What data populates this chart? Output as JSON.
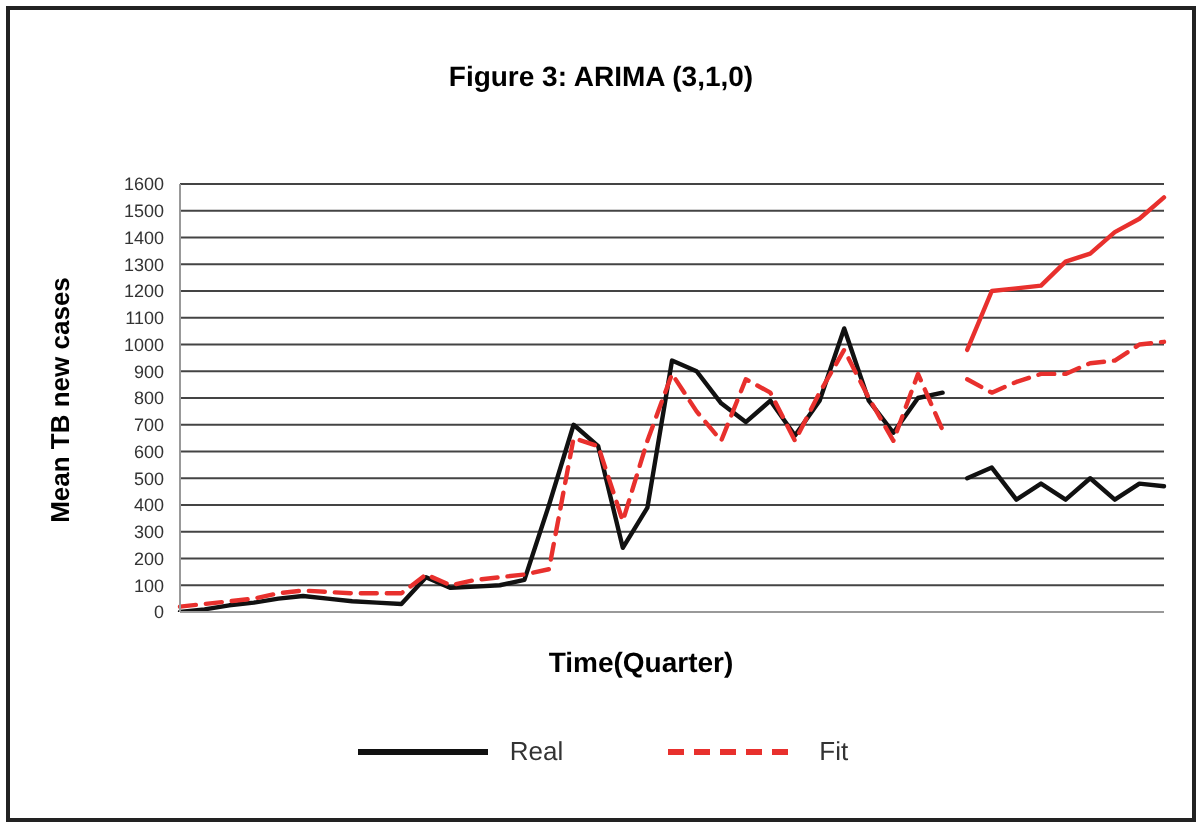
{
  "chart_data": {
    "type": "line",
    "title": "Figure 3: ARIMA (3,1,0)",
    "xlabel": "Time(Quarter)",
    "ylabel": "Mean TB new cases",
    "ylim": [
      0,
      1600
    ],
    "yticks": [
      0,
      100,
      200,
      300,
      400,
      500,
      600,
      700,
      800,
      900,
      1000,
      1100,
      1200,
      1300,
      1400,
      1500,
      1600
    ],
    "tick_labels": "y",
    "grid": "y",
    "legend": "bottom",
    "marker": "none",
    "categories": [
      null,
      null,
      null,
      null,
      null,
      null,
      null,
      null,
      null,
      null,
      null,
      null,
      null,
      null,
      null,
      null,
      null,
      null,
      null,
      null,
      null,
      null,
      null,
      null,
      null,
      null,
      null,
      null,
      null,
      null,
      null,
      null,
      null,
      null,
      null,
      null,
      null,
      null,
      null,
      null,
      null
    ],
    "series": [
      {
        "name": "Real",
        "color": "#111111",
        "line_style": "solid",
        "values": [
          0,
          10,
          25,
          35,
          50,
          60,
          50,
          40,
          35,
          30,
          130,
          90,
          95,
          100,
          120,
          400,
          700,
          620,
          240,
          390,
          940,
          900,
          780,
          710,
          790,
          660,
          790,
          1060,
          790,
          670,
          800,
          820,
          null,
          null,
          null,
          null,
          null,
          null,
          null,
          null,
          null
        ]
      },
      {
        "name": "Fit",
        "color": "#e8302d",
        "line_style": "dashed",
        "values": [
          20,
          30,
          40,
          50,
          70,
          80,
          75,
          70,
          70,
          70,
          140,
          100,
          120,
          130,
          140,
          160,
          650,
          620,
          340,
          640,
          890,
          750,
          640,
          870,
          820,
          640,
          820,
          980,
          800,
          640,
          890,
          680,
          null,
          null,
          null,
          null,
          null,
          null,
          null,
          null,
          null
        ]
      },
      {
        "color": "#111111",
        "line_style": "solid",
        "values": [
          null,
          null,
          null,
          null,
          null,
          null,
          null,
          null,
          null,
          null,
          null,
          null,
          null,
          null,
          null,
          null,
          null,
          null,
          null,
          null,
          null,
          null,
          null,
          null,
          null,
          null,
          null,
          null,
          null,
          null,
          null,
          null,
          500,
          540,
          420,
          480,
          420,
          500,
          420,
          480,
          470
        ]
      },
      {
        "color": "#e8302d",
        "line_style": "solid",
        "values": [
          null,
          null,
          null,
          null,
          null,
          null,
          null,
          null,
          null,
          null,
          null,
          null,
          null,
          null,
          null,
          null,
          null,
          null,
          null,
          null,
          null,
          null,
          null,
          null,
          null,
          null,
          null,
          null,
          null,
          null,
          null,
          null,
          980,
          1200,
          1210,
          1220,
          1310,
          1340,
          1420,
          1470,
          1550
        ]
      },
      {
        "color": "#e8302d",
        "line_style": "dashed",
        "values": [
          null,
          null,
          null,
          null,
          null,
          null,
          null,
          null,
          null,
          null,
          null,
          null,
          null,
          null,
          null,
          null,
          null,
          null,
          null,
          null,
          null,
          null,
          null,
          null,
          null,
          null,
          null,
          null,
          null,
          null,
          null,
          null,
          870,
          820,
          860,
          890,
          890,
          930,
          940,
          1000,
          1010
        ]
      }
    ]
  }
}
